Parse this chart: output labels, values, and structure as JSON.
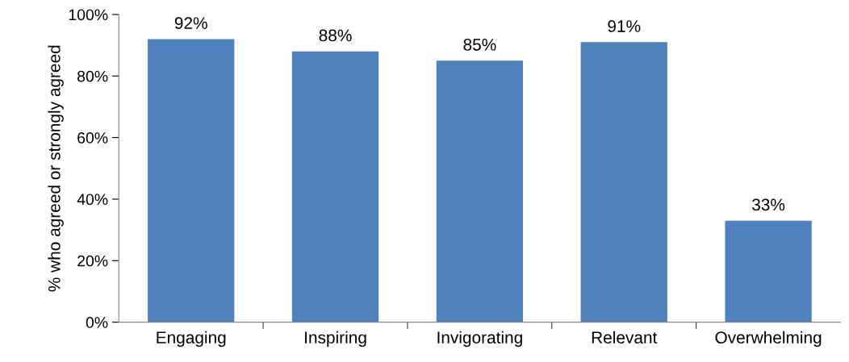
{
  "chart_data": {
    "type": "bar",
    "ylabel": "% who agreed or strongly agreed",
    "categories": [
      "Engaging",
      "Inspiring",
      "Invigorating",
      "Relevant",
      "Overwhelming"
    ],
    "values": [
      92,
      88,
      85,
      91,
      33
    ],
    "value_labels": [
      "92%",
      "88%",
      "85%",
      "91%",
      "33%"
    ],
    "color": "#4f81bd",
    "ylim": [
      0,
      100
    ],
    "yticks": [
      {
        "value": 0,
        "label": "0%"
      },
      {
        "value": 20,
        "label": "20%"
      },
      {
        "value": 40,
        "label": "40%"
      },
      {
        "value": 60,
        "label": "60%"
      },
      {
        "value": 80,
        "label": "80%"
      },
      {
        "value": 100,
        "label": "100%"
      }
    ],
    "grid": false,
    "legend": false
  }
}
